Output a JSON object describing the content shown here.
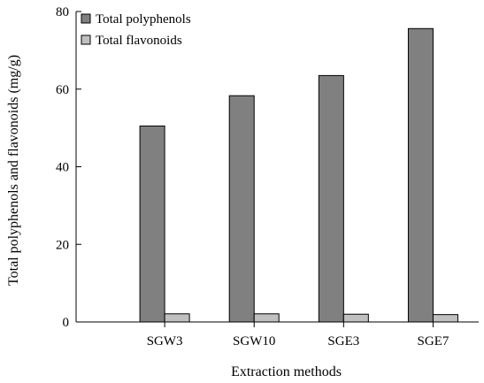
{
  "chart_data": {
    "type": "bar",
    "categories": [
      "SGW3",
      "SGW10",
      "SGE3",
      "SGE7"
    ],
    "series": [
      {
        "name": "Total polyphenols",
        "values": [
          50.5,
          58.3,
          63.5,
          75.6
        ],
        "color": "#808080"
      },
      {
        "name": "Total flavonoids",
        "values": [
          2.1,
          2.1,
          2.0,
          1.9
        ],
        "color": "#c0c0c0"
      }
    ],
    "xlabel": "Extraction methods",
    "ylabel": "Total polyphenols and flavonoids (mg/g)",
    "ylim": [
      0,
      80
    ],
    "yticks": [
      "0",
      "20",
      "40",
      "60",
      "80"
    ],
    "legend_position": "top-left",
    "grid": false
  }
}
